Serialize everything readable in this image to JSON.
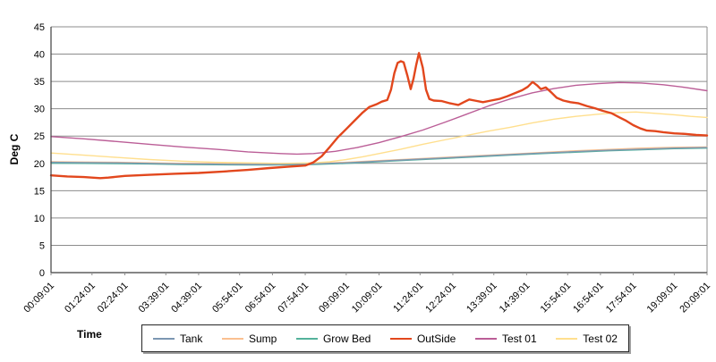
{
  "chart": {
    "x_axis_title": "Time",
    "y_axis_title": "Deg C",
    "colors": {
      "gridline": "#8c8c8c",
      "axis": "#3f3f3f",
      "plot_border": "#8c8c8c",
      "tick": "#8c8c8c",
      "label": "#000000",
      "legend_border": "#262626",
      "legend_shadow": "#a0a0a0",
      "background": "#ffffff"
    }
  },
  "chart_data": {
    "type": "line",
    "title": "",
    "xlabel": "Time",
    "ylabel": "Deg C",
    "ylim": [
      0,
      45
    ],
    "ytick_step": 5,
    "yticks": [
      0,
      5,
      10,
      15,
      20,
      25,
      30,
      35,
      40,
      45
    ],
    "grid": "horizontal",
    "legend_position": "bottom",
    "categories": [
      "00:09:01",
      "01:24:01",
      "02:24:01",
      "03:39:01",
      "04:39:01",
      "05:54:01",
      "06:54:01",
      "07:54:01",
      "09:09:01",
      "10:09:01",
      "11:24:01",
      "12:24:01",
      "13:39:01",
      "14:39:01",
      "15:54:01",
      "16:54:01",
      "17:54:01",
      "19:09:01",
      "20:09:01"
    ],
    "category_minutes": [
      0,
      75,
      135,
      210,
      270,
      345,
      405,
      465,
      540,
      600,
      675,
      735,
      810,
      870,
      945,
      1005,
      1065,
      1140,
      1200
    ],
    "x_range_minutes": [
      0,
      1200
    ],
    "series": [
      {
        "name": "Tank",
        "color": "#7c97b2",
        "width": 1.4,
        "points": [
          [
            0,
            20.2
          ],
          [
            60,
            20.15
          ],
          [
            120,
            20.1
          ],
          [
            180,
            20.0
          ],
          [
            240,
            19.9
          ],
          [
            300,
            19.85
          ],
          [
            360,
            19.8
          ],
          [
            420,
            19.82
          ],
          [
            480,
            19.9
          ],
          [
            540,
            20.1
          ],
          [
            600,
            20.4
          ],
          [
            660,
            20.7
          ],
          [
            720,
            21.0
          ],
          [
            780,
            21.3
          ],
          [
            840,
            21.6
          ],
          [
            900,
            21.9
          ],
          [
            960,
            22.15
          ],
          [
            1020,
            22.4
          ],
          [
            1080,
            22.6
          ],
          [
            1140,
            22.8
          ],
          [
            1200,
            22.9
          ]
        ]
      },
      {
        "name": "Sump",
        "color": "#fac090",
        "width": 1.4,
        "points": [
          [
            0,
            20.3
          ],
          [
            60,
            20.25
          ],
          [
            120,
            20.2
          ],
          [
            180,
            20.1
          ],
          [
            240,
            20.0
          ],
          [
            300,
            19.95
          ],
          [
            360,
            19.9
          ],
          [
            420,
            19.92
          ],
          [
            480,
            20.0
          ],
          [
            540,
            20.2
          ],
          [
            600,
            20.5
          ],
          [
            660,
            20.8
          ],
          [
            720,
            21.1
          ],
          [
            780,
            21.4
          ],
          [
            840,
            21.7
          ],
          [
            900,
            22.0
          ],
          [
            960,
            22.3
          ],
          [
            1020,
            22.55
          ],
          [
            1080,
            22.8
          ],
          [
            1140,
            22.95
          ],
          [
            1200,
            23.0
          ]
        ]
      },
      {
        "name": "Grow Bed",
        "color": "#54b29b",
        "width": 1.4,
        "points": [
          [
            0,
            20.05
          ],
          [
            60,
            20.0
          ],
          [
            120,
            19.95
          ],
          [
            180,
            19.9
          ],
          [
            240,
            19.8
          ],
          [
            300,
            19.75
          ],
          [
            360,
            19.7
          ],
          [
            420,
            19.72
          ],
          [
            480,
            19.8
          ],
          [
            540,
            20.0
          ],
          [
            600,
            20.3
          ],
          [
            660,
            20.6
          ],
          [
            720,
            20.9
          ],
          [
            780,
            21.2
          ],
          [
            840,
            21.5
          ],
          [
            900,
            21.8
          ],
          [
            960,
            22.05
          ],
          [
            1020,
            22.3
          ],
          [
            1080,
            22.5
          ],
          [
            1140,
            22.7
          ],
          [
            1200,
            22.8
          ]
        ]
      },
      {
        "name": "OutSide",
        "color": "#e2471d",
        "width": 2.4,
        "points": [
          [
            0,
            17.8
          ],
          [
            30,
            17.6
          ],
          [
            60,
            17.5
          ],
          [
            90,
            17.3
          ],
          [
            105,
            17.4
          ],
          [
            135,
            17.7
          ],
          [
            180,
            17.9
          ],
          [
            225,
            18.1
          ],
          [
            270,
            18.25
          ],
          [
            315,
            18.5
          ],
          [
            360,
            18.8
          ],
          [
            400,
            19.15
          ],
          [
            435,
            19.4
          ],
          [
            465,
            19.6
          ],
          [
            480,
            20.2
          ],
          [
            495,
            21.3
          ],
          [
            510,
            23.0
          ],
          [
            525,
            24.8
          ],
          [
            540,
            26.3
          ],
          [
            555,
            27.8
          ],
          [
            570,
            29.3
          ],
          [
            582,
            30.3
          ],
          [
            595,
            30.8
          ],
          [
            605,
            31.3
          ],
          [
            615,
            31.6
          ],
          [
            622,
            33.5
          ],
          [
            628,
            36.5
          ],
          [
            634,
            38.4
          ],
          [
            640,
            38.7
          ],
          [
            645,
            38.5
          ],
          [
            652,
            36.0
          ],
          [
            658,
            33.6
          ],
          [
            663,
            35.5
          ],
          [
            668,
            38.0
          ],
          [
            673,
            40.2
          ],
          [
            680,
            37.5
          ],
          [
            686,
            33.5
          ],
          [
            692,
            31.8
          ],
          [
            700,
            31.5
          ],
          [
            715,
            31.4
          ],
          [
            730,
            31.0
          ],
          [
            745,
            30.7
          ],
          [
            755,
            31.2
          ],
          [
            765,
            31.7
          ],
          [
            775,
            31.5
          ],
          [
            790,
            31.2
          ],
          [
            805,
            31.5
          ],
          [
            820,
            31.8
          ],
          [
            835,
            32.3
          ],
          [
            850,
            32.9
          ],
          [
            862,
            33.4
          ],
          [
            872,
            34.0
          ],
          [
            881,
            34.9
          ],
          [
            889,
            34.3
          ],
          [
            896,
            33.6
          ],
          [
            905,
            33.9
          ],
          [
            915,
            33.0
          ],
          [
            925,
            32.0
          ],
          [
            937,
            31.5
          ],
          [
            950,
            31.2
          ],
          [
            965,
            31.0
          ],
          [
            980,
            30.5
          ],
          [
            995,
            30.1
          ],
          [
            1010,
            29.6
          ],
          [
            1025,
            29.2
          ],
          [
            1040,
            28.4
          ],
          [
            1052,
            27.8
          ],
          [
            1065,
            27.0
          ],
          [
            1078,
            26.4
          ],
          [
            1090,
            26.0
          ],
          [
            1105,
            25.9
          ],
          [
            1120,
            25.7
          ],
          [
            1140,
            25.5
          ],
          [
            1160,
            25.4
          ],
          [
            1180,
            25.2
          ],
          [
            1200,
            25.1
          ]
        ]
      },
      {
        "name": "Test 01",
        "color": "#bb5e97",
        "width": 1.4,
        "points": [
          [
            0,
            24.9
          ],
          [
            60,
            24.5
          ],
          [
            120,
            24.0
          ],
          [
            180,
            23.5
          ],
          [
            240,
            23.0
          ],
          [
            300,
            22.6
          ],
          [
            360,
            22.1
          ],
          [
            420,
            21.8
          ],
          [
            450,
            21.7
          ],
          [
            480,
            21.8
          ],
          [
            520,
            22.2
          ],
          [
            560,
            22.9
          ],
          [
            600,
            23.8
          ],
          [
            640,
            24.9
          ],
          [
            680,
            26.1
          ],
          [
            720,
            27.5
          ],
          [
            760,
            29.0
          ],
          [
            800,
            30.5
          ],
          [
            840,
            31.8
          ],
          [
            880,
            32.9
          ],
          [
            920,
            33.7
          ],
          [
            960,
            34.3
          ],
          [
            1000,
            34.6
          ],
          [
            1040,
            34.8
          ],
          [
            1080,
            34.7
          ],
          [
            1120,
            34.4
          ],
          [
            1160,
            33.9
          ],
          [
            1200,
            33.3
          ]
        ]
      },
      {
        "name": "Test 02",
        "color": "#ffdf8e",
        "width": 1.4,
        "points": [
          [
            0,
            21.9
          ],
          [
            60,
            21.5
          ],
          [
            120,
            21.1
          ],
          [
            180,
            20.7
          ],
          [
            240,
            20.4
          ],
          [
            300,
            20.2
          ],
          [
            360,
            20.1
          ],
          [
            420,
            20.0
          ],
          [
            480,
            20.1
          ],
          [
            510,
            20.3
          ],
          [
            540,
            20.7
          ],
          [
            570,
            21.2
          ],
          [
            600,
            21.8
          ],
          [
            640,
            22.6
          ],
          [
            680,
            23.5
          ],
          [
            720,
            24.3
          ],
          [
            760,
            25.1
          ],
          [
            800,
            25.9
          ],
          [
            840,
            26.6
          ],
          [
            880,
            27.4
          ],
          [
            920,
            28.1
          ],
          [
            960,
            28.6
          ],
          [
            1000,
            29.0
          ],
          [
            1040,
            29.3
          ],
          [
            1070,
            29.4
          ],
          [
            1100,
            29.2
          ],
          [
            1140,
            28.9
          ],
          [
            1170,
            28.6
          ],
          [
            1200,
            28.4
          ]
        ]
      }
    ]
  }
}
